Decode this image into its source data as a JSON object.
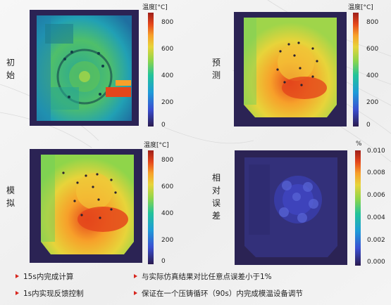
{
  "panels": [
    {
      "id": "initial",
      "label": "初始",
      "colorbar": {
        "title": "温度[°C]",
        "ticks": [
          "800",
          "600",
          "400",
          "200",
          "0"
        ],
        "range": [
          0,
          850
        ],
        "scheme": "turbo"
      }
    },
    {
      "id": "predicted",
      "label": "预测",
      "colorbar": {
        "title": "温度[°C]",
        "ticks": [
          "800",
          "600",
          "400",
          "200",
          "0"
        ],
        "range": [
          0,
          850
        ],
        "scheme": "turbo"
      }
    },
    {
      "id": "simulated",
      "label": "模拟",
      "colorbar": {
        "title": "温度[°C]",
        "ticks": [
          "800",
          "600",
          "400",
          "200",
          "0"
        ],
        "range": [
          0,
          850
        ],
        "scheme": "turbo"
      }
    },
    {
      "id": "relative-error",
      "label": "相对误差",
      "colorbar": {
        "title": "%",
        "ticks": [
          "0.010",
          "0.008",
          "0.006",
          "0.004",
          "0.002",
          "0.000"
        ],
        "range": [
          0,
          0.0105
        ],
        "scheme": "turbo"
      }
    }
  ],
  "bullets": [
    "15s内完成计算",
    "与实际仿真结果对比任意点误差小于1%",
    "1s内实现反馈控制",
    "保证在一个压铸循环（90s）内完成模温设备调节"
  ],
  "colors": {
    "bullet_marker": "#d7261e",
    "turbo": [
      "#2b1b4f",
      "#3a4fd1",
      "#1e9bd8",
      "#22c39a",
      "#8fd54a",
      "#e7d43a",
      "#f7a02a",
      "#e4461b",
      "#9e1f1a"
    ]
  }
}
